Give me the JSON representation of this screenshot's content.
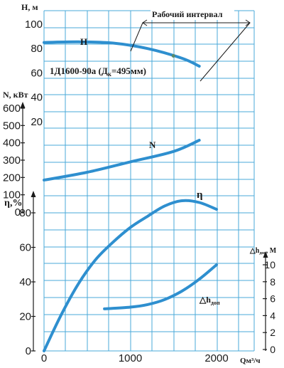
{
  "chart_data": {
    "type": "line",
    "model_label": "1Д1600-90а (Д",
    "model_label_sub": "к",
    "model_label_tail": "=495мм)",
    "working_interval_label": "Рабочий интервал",
    "working_interval": [
      1200,
      2380
    ],
    "xlabel": "Qм³/ч",
    "xlim": [
      0,
      2400
    ],
    "x_ticks": [
      "0",
      "1000",
      "2000"
    ],
    "axes": {
      "H": {
        "label": "Н, м",
        "range": [
          0,
          100
        ],
        "ticks": [
          "20",
          "40",
          "60",
          "80",
          "100"
        ]
      },
      "N": {
        "label": "N, кВт",
        "range": [
          0,
          600
        ],
        "ticks": [
          "0",
          "100",
          "200",
          "300",
          "400",
          "500",
          "600"
        ]
      },
      "eta": {
        "label": "η,%",
        "range": [
          0,
          80
        ],
        "ticks": [
          "0",
          "20",
          "40",
          "60",
          "80"
        ]
      },
      "dh": {
        "label": "△h",
        "label_sub": "доп",
        "label_tail": ", М",
        "range": [
          0,
          10
        ],
        "ticks": [
          "0",
          "2",
          "4",
          "6",
          "8",
          "10"
        ]
      }
    },
    "series": [
      {
        "name": "Н",
        "axis": "H",
        "color": "#2e8fcf",
        "x": [
          0,
          400,
          800,
          1200,
          1600,
          1800
        ],
        "y": [
          85,
          85.5,
          84.5,
          80,
          72,
          65.5
        ]
      },
      {
        "name": "N",
        "axis": "N",
        "color": "#2e8fcf",
        "x": [
          0,
          500,
          1000,
          1500,
          1800
        ],
        "y": [
          185,
          230,
          290,
          350,
          415
        ]
      },
      {
        "name": "η",
        "axis": "eta",
        "color": "#2e8fcf",
        "x": [
          0,
          200,
          400,
          600,
          800,
          1000,
          1200,
          1400,
          1600,
          1800,
          2000
        ],
        "y": [
          0,
          21,
          39,
          53,
          63,
          71.5,
          78,
          84,
          87,
          86,
          82
        ]
      },
      {
        "name": "△h",
        "name_sub": "доп",
        "axis": "dh",
        "color": "#2e8fcf",
        "x": [
          700,
          1000,
          1200,
          1400,
          1600,
          1800,
          2000
        ],
        "y": [
          4.8,
          5.0,
          5.3,
          5.9,
          6.9,
          8.3,
          10.0
        ]
      }
    ],
    "grid": true
  }
}
